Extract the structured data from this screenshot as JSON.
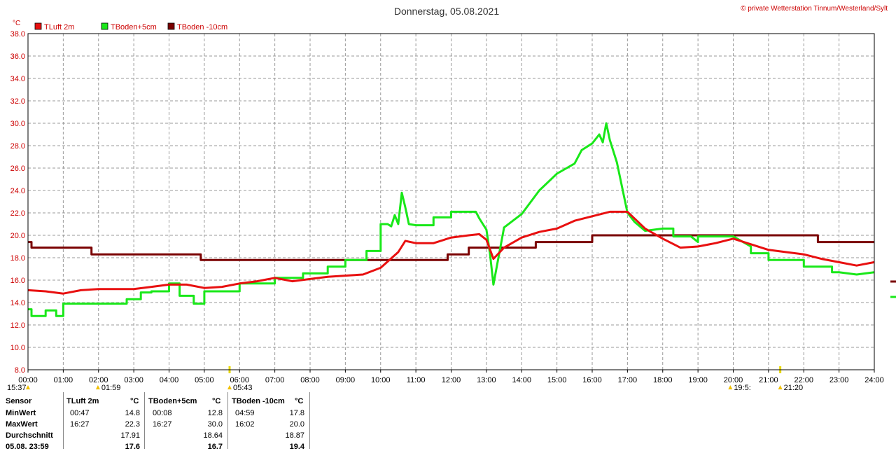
{
  "chart_data": {
    "type": "line",
    "title": "Donnerstag, 05.08.2021",
    "copyright": "© private Wetterstation Tinnum/Westerland/Sylt",
    "yunit": "°C",
    "ylim": [
      8.0,
      38.0
    ],
    "yticks": [
      "8.0",
      "10.0",
      "12.0",
      "14.0",
      "16.0",
      "18.0",
      "20.0",
      "22.0",
      "24.0",
      "26.0",
      "28.0",
      "30.0",
      "32.0",
      "34.0",
      "36.0",
      "38.0"
    ],
    "xlim": [
      0,
      24
    ],
    "xticks": [
      "00:00",
      "01:00",
      "02:00",
      "03:00",
      "04:00",
      "05:00",
      "06:00",
      "07:00",
      "08:00",
      "09:00",
      "10:00",
      "11:00",
      "12:00",
      "13:00",
      "14:00",
      "15:00",
      "16:00",
      "17:00",
      "18:00",
      "19:00",
      "20:00",
      "21:00",
      "22:00",
      "23:00",
      "24:00"
    ],
    "grid": true,
    "legend_position": "top-left",
    "series": [
      {
        "name": "TLuft 2m",
        "color": "#e81010",
        "x": [
          0,
          0.5,
          1,
          1.5,
          2,
          2.5,
          3,
          3.5,
          4,
          4.5,
          5,
          5.5,
          6,
          6.5,
          7,
          7.5,
          8,
          8.5,
          9,
          9.5,
          10,
          10.5,
          10.7,
          11,
          11.5,
          12,
          12.5,
          12.8,
          13,
          13.2,
          13.5,
          14,
          14.5,
          15,
          15.5,
          16,
          16.5,
          17,
          17.5,
          18,
          18.5,
          19,
          19.5,
          20,
          20.5,
          21,
          21.5,
          22,
          22.5,
          23,
          23.5,
          24
        ],
        "y": [
          15.1,
          15.0,
          14.8,
          15.1,
          15.2,
          15.2,
          15.2,
          15.4,
          15.6,
          15.6,
          15.3,
          15.4,
          15.7,
          15.9,
          16.2,
          15.9,
          16.1,
          16.3,
          16.4,
          16.5,
          17.1,
          18.5,
          19.5,
          19.3,
          19.3,
          19.8,
          20.0,
          20.1,
          19.6,
          17.9,
          18.9,
          19.8,
          20.3,
          20.6,
          21.3,
          21.7,
          22.1,
          22.1,
          20.6,
          19.7,
          18.9,
          19.0,
          19.3,
          19.7,
          19.2,
          18.7,
          18.5,
          18.3,
          17.9,
          17.6,
          17.3,
          17.6
        ]
      },
      {
        "name": "TBoden+5cm",
        "color": "#19e819",
        "x": [
          0,
          0.1,
          0.1,
          0.5,
          0.5,
          0.8,
          0.8,
          1.0,
          1.0,
          2.0,
          2.8,
          2.8,
          3.2,
          3.2,
          3.5,
          3.5,
          4.0,
          4.0,
          4.3,
          4.3,
          4.7,
          4.7,
          5.0,
          5.0,
          6.0,
          6.0,
          7.0,
          7.0,
          7.8,
          7.8,
          8.5,
          8.5,
          9.0,
          9.0,
          9.6,
          9.6,
          10.0,
          10.0,
          10.2,
          10.3,
          10.4,
          10.5,
          10.6,
          10.7,
          10.8,
          11.0,
          11.5,
          11.5,
          12.0,
          12.0,
          12.7,
          12.8,
          13.0,
          13.1,
          13.2,
          13.5,
          14.0,
          14.5,
          15.0,
          15.5,
          15.7,
          16.0,
          16.2,
          16.3,
          16.4,
          16.5,
          16.7,
          17.0,
          17.2,
          17.5,
          18.0,
          18.3,
          18.3,
          18.8,
          19.0,
          19.0,
          20.0,
          20.5,
          20.5,
          21.0,
          21.0,
          22.0,
          22.0,
          22.8,
          22.8,
          23.0,
          23.5,
          24.0
        ],
        "y": [
          13.4,
          13.4,
          12.8,
          12.8,
          13.3,
          13.3,
          12.8,
          12.8,
          13.9,
          13.9,
          13.9,
          14.3,
          14.3,
          14.9,
          14.9,
          15.0,
          15.0,
          15.7,
          15.7,
          14.6,
          14.6,
          13.9,
          13.9,
          15.0,
          15.0,
          15.7,
          15.7,
          16.2,
          16.2,
          16.6,
          16.6,
          17.2,
          17.2,
          17.8,
          17.8,
          18.6,
          18.6,
          21.0,
          21.0,
          20.8,
          21.8,
          21.0,
          23.8,
          22.5,
          21.0,
          20.9,
          20.9,
          21.6,
          21.6,
          22.1,
          22.1,
          21.5,
          20.5,
          18.4,
          15.6,
          20.7,
          21.9,
          24.0,
          25.5,
          26.4,
          27.6,
          28.2,
          29.0,
          28.3,
          30.0,
          28.5,
          26.5,
          22.0,
          21.2,
          20.4,
          20.6,
          20.6,
          19.9,
          19.9,
          19.4,
          19.9,
          19.9,
          19.0,
          18.4,
          18.4,
          17.8,
          17.8,
          17.2,
          17.2,
          16.7,
          16.7,
          16.5,
          16.7
        ]
      },
      {
        "name": "TBoden -10cm",
        "color": "#7a0000",
        "x": [
          0,
          0.1,
          0.1,
          1.8,
          1.8,
          4.9,
          4.9,
          9.8,
          9.8,
          11.9,
          11.9,
          12.5,
          12.5,
          14.4,
          14.4,
          16.0,
          16.0,
          22.4,
          22.4,
          24.0
        ],
        "y": [
          19.4,
          19.4,
          18.9,
          18.9,
          18.3,
          18.3,
          17.8,
          17.8,
          17.8,
          17.8,
          18.3,
          18.3,
          18.9,
          18.9,
          19.4,
          19.4,
          20.0,
          20.0,
          19.4,
          19.4
        ]
      }
    ],
    "sun_markers": [
      {
        "x": 0.0,
        "label": "15:37"
      },
      {
        "x": 1.983,
        "label": "01:59"
      },
      {
        "x": 5.717,
        "label": "05:43"
      },
      {
        "x": 19.917,
        "label": "19:5:"
      },
      {
        "x": 21.333,
        "label": "21:20"
      }
    ]
  },
  "stats_table": {
    "header": {
      "sensor": "Sensor",
      "s1": "TLuft 2m",
      "s2": "TBoden+5cm",
      "s3": "TBoden -10cm",
      "unit": "°C"
    },
    "rows": [
      {
        "label": "MinWert",
        "t1": "00:47",
        "v1": "14.8",
        "t2": "00:08",
        "v2": "12.8",
        "t3": "04:59",
        "v3": "17.8"
      },
      {
        "label": "MaxWert",
        "t1": "16:27",
        "v1": "22.3",
        "t2": "16:27",
        "v2": "30.0",
        "t3": "16:02",
        "v3": "20.0"
      },
      {
        "label": "Durchschnitt",
        "t1": "",
        "v1": "17.91",
        "t2": "",
        "v2": "18.64",
        "t3": "",
        "v3": "18.87"
      },
      {
        "label": "05.08. 23:59",
        "t1": "",
        "v1": "17.6",
        "t2": "",
        "v2": "16.7",
        "t3": "",
        "v3": "19.4"
      }
    ]
  }
}
